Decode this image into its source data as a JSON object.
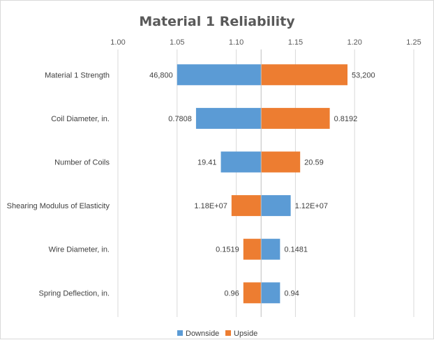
{
  "chart_data": {
    "type": "bar",
    "orientation": "horizontal",
    "variant": "tornado",
    "title": "Material  1 Reliability",
    "xlabel": "",
    "ylabel": "",
    "xlim": [
      1.0,
      1.25
    ],
    "x_ticks": [
      "1.00",
      "1.05",
      "1.10",
      "1.15",
      "1.20",
      "1.25"
    ],
    "x_tick_values": [
      1.0,
      1.05,
      1.1,
      1.15,
      1.2,
      1.25
    ],
    "axis_position": "top",
    "baseline": 1.121,
    "grid": true,
    "legend_position": "bottom",
    "categories": [
      "Material 1 Strength",
      "Coil Diameter, in.",
      "Number of Coils",
      "Shearing Modulus of Elasticity",
      "Wire Diameter, in.",
      "Spring Deflection, in."
    ],
    "series": [
      {
        "name": "Downside",
        "color": "#5b9bd5",
        "values": [
          1.05,
          1.066,
          1.087,
          1.146,
          1.137,
          1.137
        ],
        "labels": [
          "46,800",
          "0.7808",
          "19.41",
          "1.12E+07",
          "0.1481",
          "0.94"
        ]
      },
      {
        "name": "Upside",
        "color": "#ed7d31",
        "values": [
          1.194,
          1.179,
          1.154,
          1.096,
          1.106,
          1.106
        ],
        "labels": [
          "53,200",
          "0.8192",
          "20.59",
          "1.18E+07",
          "0.1519",
          "0.96"
        ]
      }
    ]
  }
}
